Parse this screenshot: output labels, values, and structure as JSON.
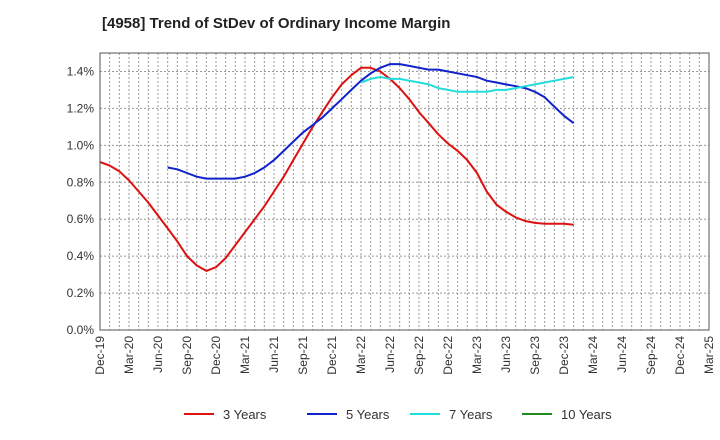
{
  "chart_data": {
    "type": "line",
    "title": "[4958]  Trend of StDev of Ordinary Income Margin",
    "xlabel": "",
    "ylabel": "",
    "x_tick_labels": [
      "Dec-19",
      "Mar-20",
      "Jun-20",
      "Sep-20",
      "Dec-20",
      "Mar-21",
      "Jun-21",
      "Sep-21",
      "Dec-21",
      "Mar-22",
      "Jun-22",
      "Sep-22",
      "Dec-22",
      "Mar-23",
      "Jun-23",
      "Sep-23",
      "Dec-23",
      "Mar-24",
      "Jun-24",
      "Sep-24",
      "Dec-24",
      "Mar-25"
    ],
    "y_tick_labels": [
      "0.0%",
      "0.2%",
      "0.4%",
      "0.6%",
      "0.8%",
      "1.0%",
      "1.2%",
      "1.4%"
    ],
    "ylim": [
      0,
      1.5
    ],
    "grid": true,
    "legend_position": "bottom",
    "series": [
      {
        "name": "3 Years",
        "color": "#dd1111",
        "values": [
          0.91,
          0.89,
          0.86,
          0.81,
          0.75,
          0.69,
          0.62,
          0.55,
          0.48,
          0.4,
          0.35,
          0.32,
          0.34,
          0.39,
          0.46,
          0.53,
          0.6,
          0.67,
          0.75,
          0.83,
          0.92,
          1.01,
          1.1,
          1.18,
          1.26,
          1.33,
          1.38,
          1.42,
          1.42,
          1.4,
          1.36,
          1.31,
          1.25,
          1.18,
          1.12,
          1.06,
          1.01,
          0.97,
          0.92,
          0.85,
          0.75,
          0.68,
          0.64,
          0.61,
          0.59,
          0.58,
          0.575,
          0.575,
          0.575,
          0.57
        ]
      },
      {
        "name": "5 Years",
        "color": "#1122cc",
        "values": [
          null,
          null,
          null,
          null,
          null,
          null,
          null,
          0.88,
          0.87,
          0.85,
          0.83,
          0.82,
          0.82,
          0.82,
          0.82,
          0.83,
          0.85,
          0.88,
          0.92,
          0.97,
          1.02,
          1.07,
          1.11,
          1.15,
          1.2,
          1.25,
          1.3,
          1.35,
          1.39,
          1.42,
          1.44,
          1.44,
          1.43,
          1.42,
          1.41,
          1.41,
          1.4,
          1.39,
          1.38,
          1.37,
          1.35,
          1.34,
          1.33,
          1.32,
          1.31,
          1.29,
          1.26,
          1.21,
          1.16,
          1.12
        ]
      },
      {
        "name": "7 Years",
        "color": "#22dddd",
        "values": [
          null,
          null,
          null,
          null,
          null,
          null,
          null,
          null,
          null,
          null,
          null,
          null,
          null,
          null,
          null,
          null,
          null,
          null,
          null,
          null,
          null,
          null,
          null,
          null,
          null,
          null,
          null,
          1.34,
          1.36,
          1.37,
          1.36,
          1.36,
          1.35,
          1.34,
          1.33,
          1.31,
          1.3,
          1.29,
          1.29,
          1.29,
          1.29,
          1.3,
          1.3,
          1.31,
          1.32,
          1.33,
          1.34,
          1.35,
          1.36,
          1.37
        ]
      },
      {
        "name": "10 Years",
        "color": "#228822",
        "values": []
      }
    ]
  }
}
